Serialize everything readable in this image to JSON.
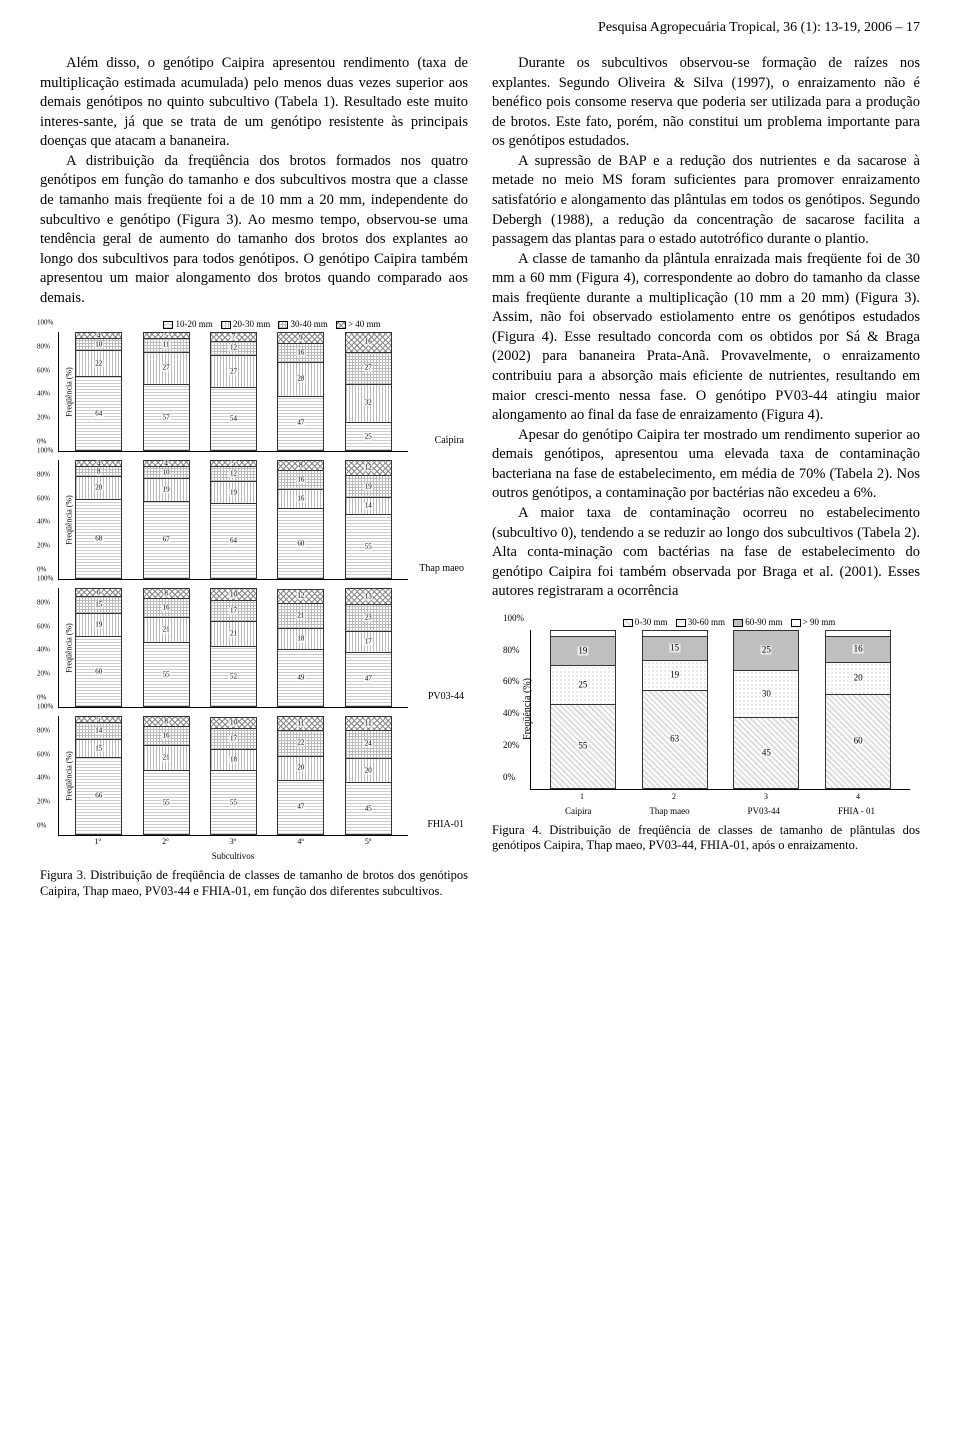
{
  "header": "Pesquisa Agropecuária Tropical, 36 (1): 13-19, 2006 – 17",
  "left_col": {
    "p1": "Além disso, o genótipo Caipira apresentou rendimento (taxa de multiplicação estimada acumulada) pelo menos duas vezes superior aos demais genótipos no quinto subcultivo (Tabela 1). Resultado este muito interes-sante, já que se trata de um genótipo resistente às principais doenças que atacam a bananeira.",
    "p2": "A distribuição da freqüência dos brotos formados nos quatro genótipos em função do tamanho e dos subcultivos mostra que a classe de tamanho mais freqüente foi a de 10 mm a 20 mm, independente do subcultivo e genótipo (Figura 3). Ao mesmo tempo, observou-se uma tendência geral de aumento do tamanho dos brotos dos explantes ao longo dos subcultivos para todos genótipos. O genótipo Caipira também apresentou um maior alongamento dos brotos quando comparado aos demais."
  },
  "right_col": {
    "p1": "Durante os subcultivos observou-se formação de raízes nos explantes. Segundo Oliveira & Silva (1997), o enraizamento não é benéfico pois consome reserva que poderia ser utilizada para a produção de brotos. Este fato, porém, não constitui um problema importante para os genótipos estudados.",
    "p2": "A supressão de BAP e a redução dos nutrientes e da sacarose à metade no meio MS foram suficientes para promover enraizamento satisfatório e alongamento das plântulas em todos os genótipos. Segundo Debergh (1988), a redução da concentração de sacarose facilita a passagem das plantas para o estado autotrófico durante o plantio.",
    "p3": "A classe de tamanho da plântula enraizada mais freqüente foi de 30 mm a 60 mm (Figura 4), correspondente ao dobro do tamanho da classe mais freqüente durante a multiplicação (10 mm a 20 mm) (Figura 3). Assim, não foi observado estiolamento entre os genótipos estudados (Figura 4). Esse resultado concorda com os obtidos por Sá & Braga (2002) para bananeira Prata-Anã. Provavelmente, o enraizamento contribuiu para a absorção mais eficiente de nutrientes, resultando em maior cresci-mento nessa fase. O genótipo PV03-44 atingiu maior alongamento ao final da fase de enraizamento (Figura 4).",
    "p4": "Apesar do genótipo Caipira ter mostrado um rendimento superior ao demais genótipos, apresentou uma elevada taxa de contaminação bacteriana na fase de estabelecimento, em média de 70% (Tabela 2). Nos outros genótipos, a contaminação por bactérias não excedeu a 6%.",
    "p5": "A maior taxa de contaminação ocorreu no estabelecimento (subcultivo 0), tendendo a se reduzir ao longo dos subcultivos (Tabela 2). Alta conta-minação com bactérias na fase de estabelecimento do genótipo Caipira foi também observada por Braga et al. (2001). Esses autores registraram a ocorrência"
  },
  "fig3": {
    "legend_items": [
      "10-20 mm",
      "20-30 mm",
      "30-40 mm",
      "> 40 mm"
    ],
    "ylabel": "Freqüência (%)",
    "yticks": [
      "0%",
      "20%",
      "40%",
      "60%",
      "80%",
      "100%"
    ],
    "yticks_plain": [
      "0%",
      "20%",
      "40%",
      "60%",
      "80%",
      "100"
    ],
    "xlabel": "Subcultivos",
    "xticks": [
      "1º",
      "2º",
      "3º",
      "4º",
      "5º"
    ],
    "panels": [
      {
        "name": "Caipira",
        "bars": [
          {
            "segs": [
              64,
              22,
              10,
              4
            ]
          },
          {
            "segs": [
              57,
              27,
              11,
              5
            ]
          },
          {
            "segs": [
              54,
              27,
              12,
              7
            ]
          },
          {
            "segs": [
              47,
              28,
              16,
              9
            ]
          },
          {
            "segs": [
              25,
              32,
              27,
              16
            ]
          }
        ]
      },
      {
        "name": "Thap maeo",
        "bars": [
          {
            "segs": [
              68,
              20,
              8,
              4
            ]
          },
          {
            "segs": [
              67,
              19,
              10,
              4
            ]
          },
          {
            "segs": [
              64,
              19,
              12,
              5
            ]
          },
          {
            "segs": [
              60,
              16,
              16,
              8
            ]
          },
          {
            "segs": [
              55,
              14,
              19,
              12
            ]
          }
        ]
      },
      {
        "name": "PV03-44",
        "bars": [
          {
            "segs": [
              60,
              19,
              15,
              6
            ]
          },
          {
            "segs": [
              55,
              21,
              16,
              8
            ]
          },
          {
            "segs": [
              52,
              21,
              17,
              10
            ]
          },
          {
            "segs": [
              49,
              18,
              21,
              12
            ]
          },
          {
            "segs": [
              47,
              17,
              23,
              13
            ]
          }
        ]
      },
      {
        "name": "FHIA-01",
        "bars": [
          {
            "segs": [
              66,
              15,
              14,
              5
            ]
          },
          {
            "segs": [
              55,
              21,
              16,
              8
            ]
          },
          {
            "segs": [
              55,
              18,
              17,
              10
            ]
          },
          {
            "segs": [
              47,
              20,
              22,
              11
            ]
          },
          {
            "segs": [
              45,
              20,
              24,
              11
            ]
          }
        ]
      }
    ],
    "caption_label": "Figura 3.",
    "caption_body": "Distribuição de freqüência de classes de tamanho de brotos dos genótipos Caipira, Thap maeo, PV03-44 e FHIA-01, em função dos diferentes subcultivos."
  },
  "fig4": {
    "legend_items": [
      "0-30 mm",
      "30-60 mm",
      "60-90 mm",
      "> 90 mm"
    ],
    "ylabel": "Freqüência (%)",
    "yticks": [
      "0%",
      "20%",
      "40%",
      "60%",
      "80%",
      "100%"
    ],
    "xticks": [
      "Caipira",
      "Thap maeo",
      "PV03-44",
      "FHIA - 01"
    ],
    "x_nums": [
      "1",
      "2",
      "3",
      "4"
    ],
    "bars": [
      {
        "segs": [
          55,
          25,
          19,
          1
        ],
        "labels": [
          55,
          25,
          19,
          ""
        ]
      },
      {
        "segs": [
          63,
          19,
          15,
          3
        ],
        "labels": [
          63,
          19,
          15,
          ""
        ]
      },
      {
        "segs": [
          45,
          30,
          25,
          0
        ],
        "labels": [
          45,
          30,
          25,
          ""
        ]
      },
      {
        "segs": [
          60,
          20,
          16,
          4
        ],
        "labels": [
          60,
          20,
          16,
          ""
        ]
      }
    ],
    "caption_label": "Figura 4.",
    "caption_body": "Distribuição de freqüência de classes de tamanho de plântulas dos genótipos Caipira, Thap maeo, PV03-44, FHIA-01, após o enraizamento."
  }
}
